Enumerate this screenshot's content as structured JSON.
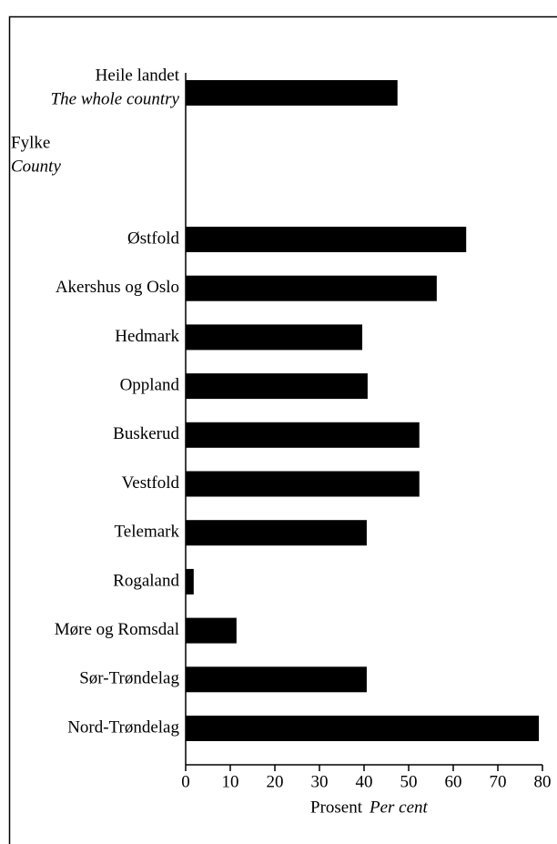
{
  "chart_data": {
    "type": "bar",
    "orientation": "horizontal",
    "categories": [
      "Heile landet",
      "Østfold",
      "Akershus og Oslo",
      "Hedmark",
      "Oppland",
      "Buskerud",
      "Vestfold",
      "Telemark",
      "Rogaland",
      "Møre og Romsdal",
      "Sør-Trøndelag",
      "Nord-Trøndelag"
    ],
    "total_label_en": "The whole country",
    "group_label": "Fylke",
    "group_label_en": "County",
    "values": [
      47.5,
      62.9,
      56.3,
      39.6,
      40.8,
      52.4,
      52.4,
      40.6,
      1.8,
      11.4,
      40.6,
      79.2
    ],
    "color": "#000000",
    "xlim": [
      0,
      80
    ],
    "xticks": [
      0,
      10,
      20,
      30,
      40,
      50,
      60,
      70,
      80
    ],
    "xlabel": "Prosent",
    "xlabel_en": "Per cent",
    "grid": false
  }
}
